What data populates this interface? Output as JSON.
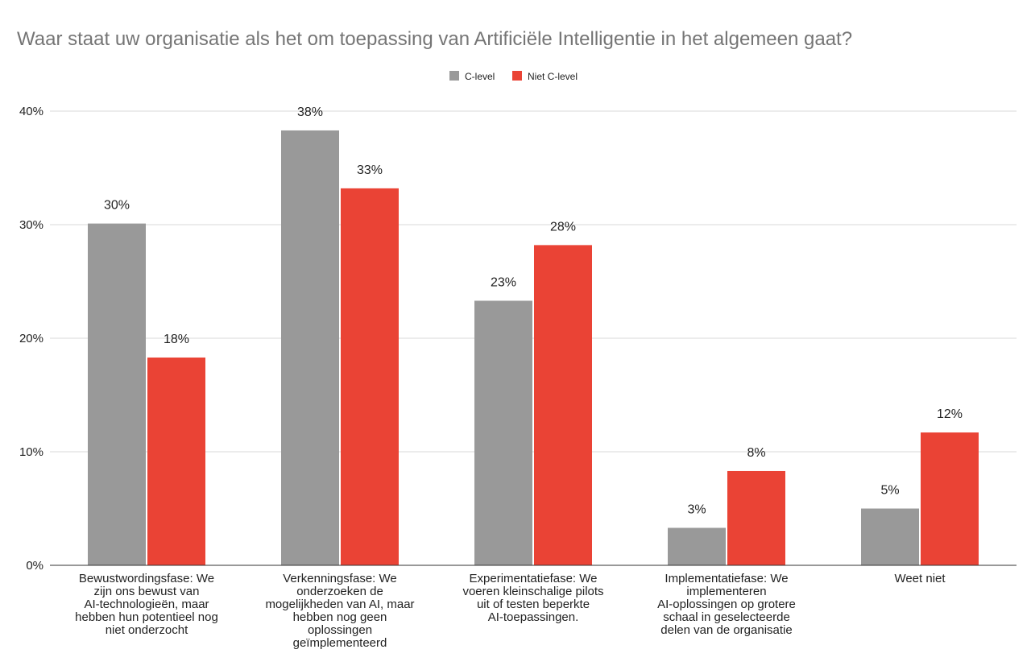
{
  "chart_data": {
    "type": "bar",
    "title": "Waar staat uw organisatie als het om toepassing van Artificiële Intelligentie in het algemeen gaat?",
    "xlabel": "",
    "ylabel": "",
    "ylim": [
      0,
      40
    ],
    "yticks": [
      0,
      10,
      20,
      30,
      40
    ],
    "ytick_labels": [
      "0%",
      "10%",
      "20%",
      "30%",
      "40%"
    ],
    "grid": true,
    "legend_position": "top-center",
    "categories": [
      "Bewustwordingsfase: We zijn ons bewust van AI-technologieën, maar hebben hun potentieel nog niet onderzocht",
      "Verkenningsfase: We onderzoeken de mogelijkheden van AI, maar hebben nog geen oplossingen geïmplementeerd",
      "Experimentatiefase: We voeren kleinschalige pilots uit of testen beperkte AI-toepassingen.",
      "Implementatiefase: We implementeren AI-oplossingen op grotere schaal in geselecteerde delen van de organisatie",
      "Weet niet"
    ],
    "category_label_lines": [
      [
        "Bewustwordingsfase: We",
        "zijn ons bewust van",
        "AI-technologieën, maar",
        "hebben hun potentieel nog",
        "niet onderzocht"
      ],
      [
        "Verkenningsfase: We",
        "onderzoeken de",
        "mogelijkheden van AI, maar",
        "hebben nog geen",
        "oplossingen",
        "geïmplementeerd"
      ],
      [
        "Experimentatiefase: We",
        "voeren kleinschalige pilots",
        "uit of testen beperkte",
        "AI-toepassingen."
      ],
      [
        "Implementatiefase: We",
        "implementeren",
        "AI-oplossingen op grotere",
        "schaal in geselecteerde",
        "delen van de organisatie"
      ],
      [
        "Weet niet"
      ]
    ],
    "series": [
      {
        "name": "C-level",
        "color": "#999999",
        "values": [
          30.1,
          38.3,
          23.3,
          3.3,
          5.0
        ],
        "labels": [
          "30%",
          "38%",
          "23%",
          "3%",
          "5%"
        ]
      },
      {
        "name": "Niet C-level",
        "color": "#ea4335",
        "values": [
          18.3,
          33.2,
          28.2,
          8.3,
          11.7
        ],
        "labels": [
          "18%",
          "33%",
          "28%",
          "8%",
          "12%"
        ]
      }
    ]
  },
  "colors": {
    "grid": "#d9d9d9",
    "axis": "#333333",
    "text": "#222222",
    "title": "#757575"
  }
}
